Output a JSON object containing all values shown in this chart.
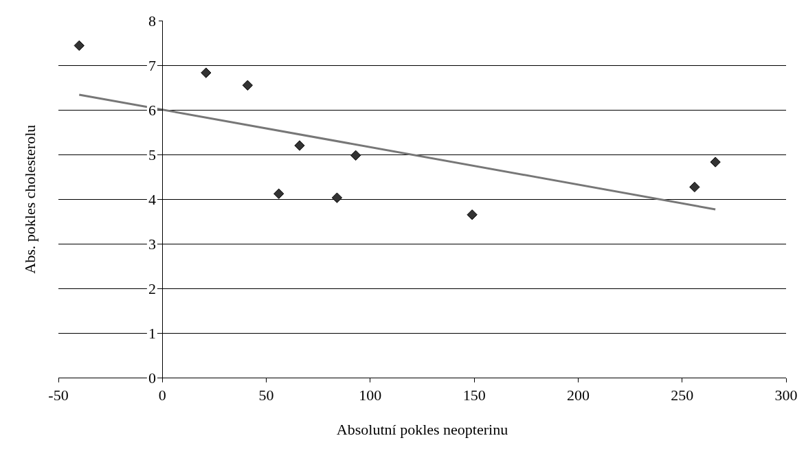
{
  "chart_data": {
    "type": "scatter",
    "xlabel": "Absolutní pokles neopterinu",
    "ylabel": "Abs. pokles cholesterolu",
    "xlim": [
      -50,
      300
    ],
    "xticks": [
      -50,
      0,
      50,
      100,
      150,
      200,
      250,
      300
    ],
    "ylim": [
      0,
      8
    ],
    "yticks": [
      0,
      1,
      2,
      3,
      4,
      5,
      6,
      7,
      8
    ],
    "grid": "y",
    "series": [
      {
        "color": "#333333",
        "marker": "diamond",
        "x": [
          -40,
          21,
          41,
          56,
          66,
          84,
          93,
          149,
          256,
          266
        ],
        "values": [
          7.44,
          6.83,
          6.55,
          4.12,
          5.2,
          4.03,
          4.98,
          3.65,
          4.27,
          4.83
        ]
      },
      {
        "type": "line",
        "marker": "none",
        "color": "#777777",
        "x": [
          -40,
          266
        ],
        "values": [
          6.34,
          3.77
        ]
      }
    ]
  }
}
